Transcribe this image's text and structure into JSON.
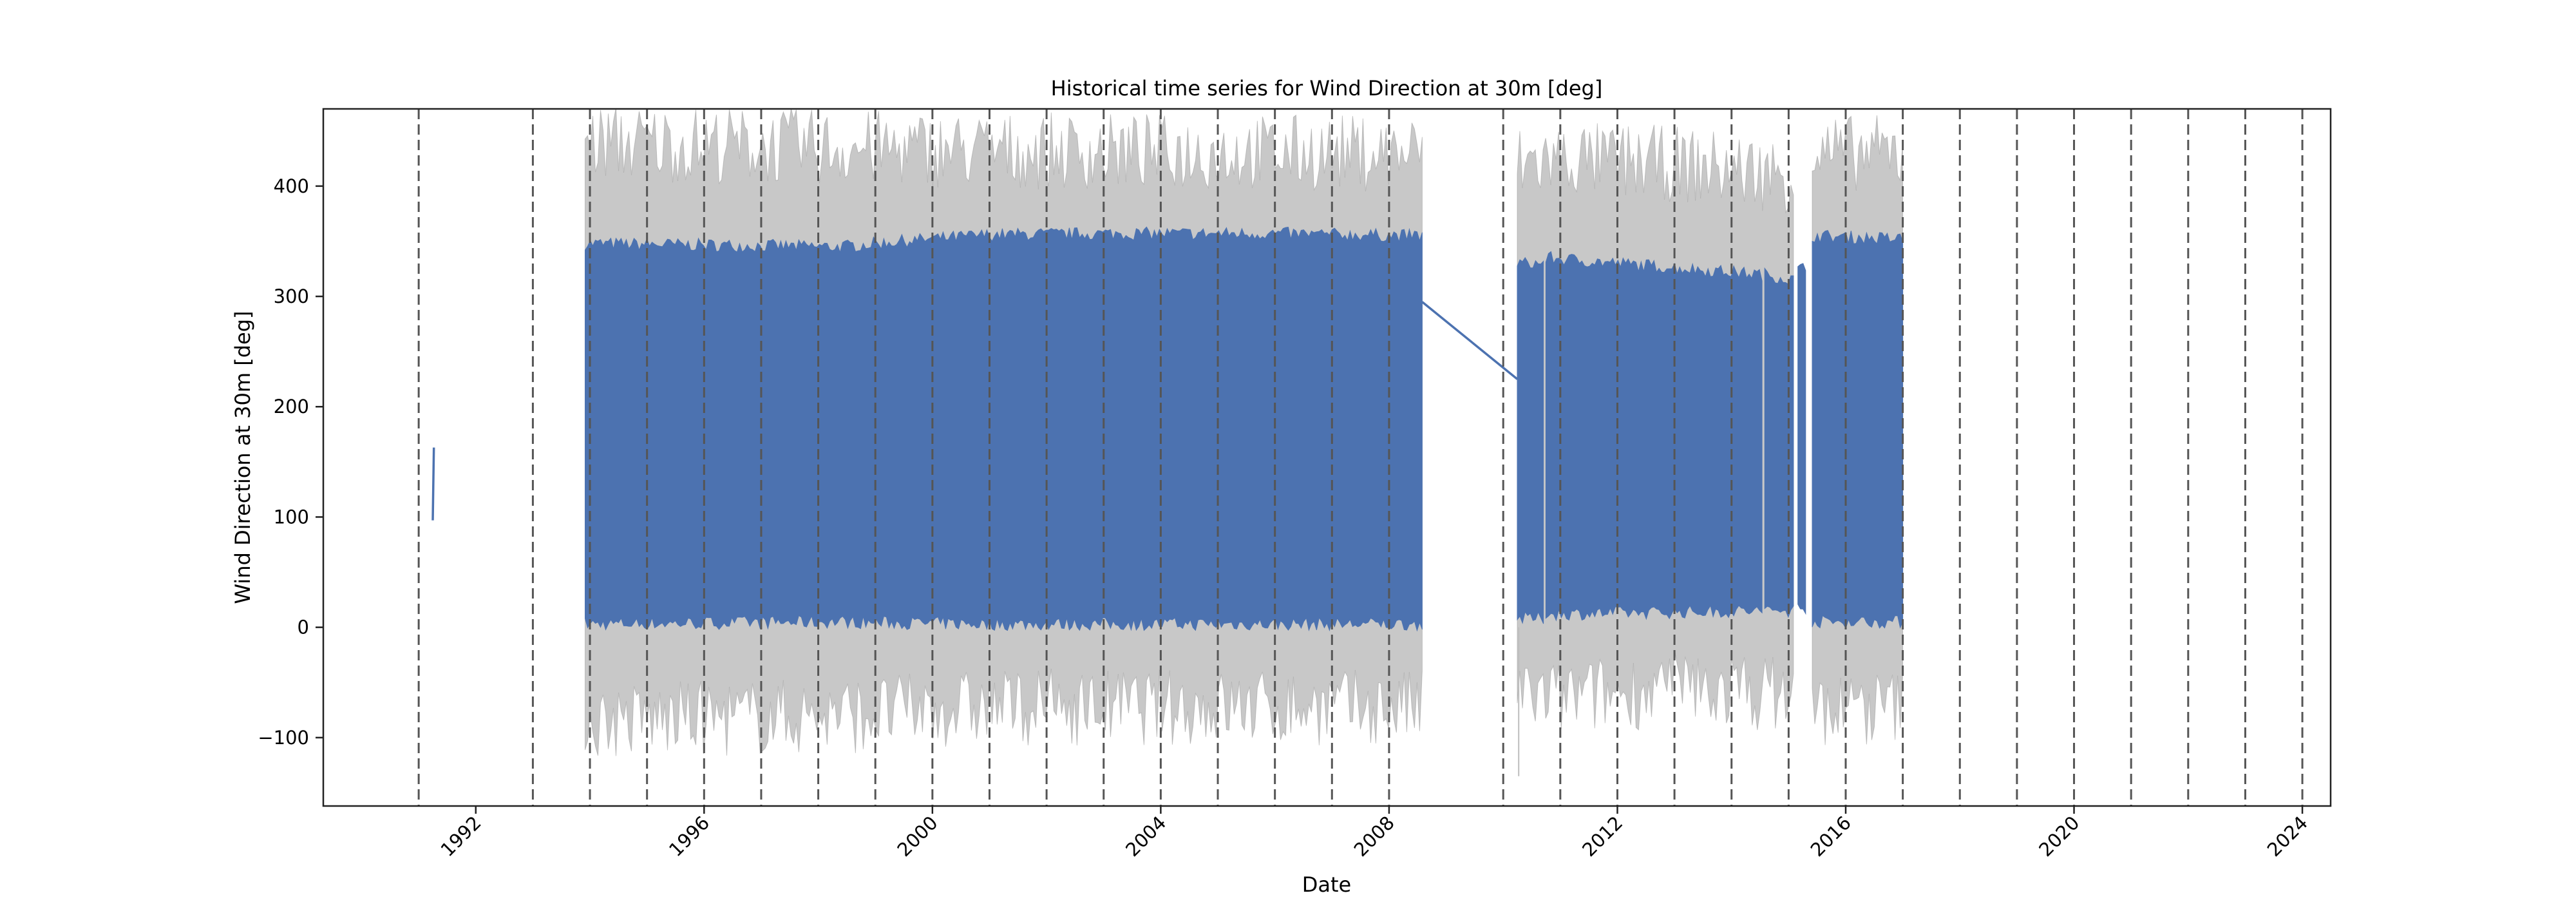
{
  "chart_data": {
    "type": "line",
    "title": "Historical time series for Wind Direction at 30m [deg]",
    "xlabel": "Date",
    "ylabel": "Wind Direction at 30m [deg]",
    "xlim": [
      "1989-05-01",
      "2024-07-01"
    ],
    "ylim": [
      -162,
      470
    ],
    "x_ticks": [
      "1992",
      "1996",
      "2000",
      "2004",
      "2008",
      "2012",
      "2016",
      "2020",
      "2024"
    ],
    "y_ticks": [
      -100,
      0,
      100,
      200,
      300,
      400
    ],
    "grid": false,
    "legend": "none",
    "year_boundaries": [
      "1991",
      "1993",
      "1994",
      "1995",
      "1996",
      "1997",
      "1998",
      "1999",
      "2000",
      "2001",
      "2002",
      "2003",
      "2004",
      "2005",
      "2006",
      "2007",
      "2008",
      "2010",
      "2011",
      "2012",
      "2013",
      "2014",
      "2015",
      "2016",
      "2017",
      "2018",
      "2019",
      "2020",
      "2021",
      "2022",
      "2023",
      "2024"
    ],
    "series": [
      {
        "role": "observations",
        "color": "#4c72b0",
        "segments": [
          {
            "x": [
              "1991-04-01",
              "1991-04-08"
            ],
            "y": [
              97,
              163
            ]
          },
          {
            "x": [
              "1993-12-01",
              "1998-06-01",
              "1999-06-01",
              "2001-01-01",
              "2003-01-01",
              "2006-01-01",
              "2008-08-01"
            ],
            "y_low": [
              3,
              5,
              4,
              3,
              3,
              3,
              3
            ],
            "y_high": [
              348,
              345,
              350,
              356,
              357,
              357,
              355
            ]
          },
          {
            "x": [
              "2008-08-01",
              "2010-04-01"
            ],
            "y": [
              295,
              225
            ]
          },
          {
            "x": [
              "2010-04-01",
              "2010-09-15"
            ],
            "y_low": [
              8,
              8
            ],
            "y_high": [
              330,
              330
            ]
          },
          {
            "x": [
              "2010-10-01",
              "2014-07-15"
            ],
            "y_low": [
              12,
              15
            ],
            "y_high": [
              335,
              320
            ]
          },
          {
            "x": [
              "2014-08-01",
              "2015-02-01"
            ],
            "y_low": [
              15,
              15
            ],
            "y_high": [
              320,
              315
            ]
          },
          {
            "x": [
              "2015-03-01",
              "2015-04-20"
            ],
            "y_low": [
              18,
              18
            ],
            "y_high": [
              325,
              325
            ]
          },
          {
            "x": [
              "2015-06-01",
              "2017-01-01"
            ],
            "y_low": [
              5,
              5
            ],
            "y_high": [
              355,
              352
            ]
          }
        ]
      },
      {
        "role": "uncertainty_envelope",
        "color": "#808080",
        "segments": [
          {
            "x": [
              "1993-12-01",
              "1998-06-01",
              "2001-01-01",
              "2008-08-01"
            ],
            "y_low": [
              -85,
              -80,
              -72,
              -73
            ],
            "y_high": [
              440,
              435,
              432,
              430
            ]
          },
          {
            "x": [
              "2010-04-01",
              "2011-01-01",
              "2013-01-01",
              "2015-02-01"
            ],
            "y_low": [
              -60,
              -65,
              -55,
              -60
            ],
            "y_high": [
              420,
              425,
              420,
              410
            ]
          },
          {
            "x": [
              "2015-06-01",
              "2017-01-01"
            ],
            "y_low": [
              -75,
              -72
            ],
            "y_high": [
              430,
              430
            ]
          }
        ],
        "outliers": [
          {
            "x": "2010-04-10",
            "y": -135
          }
        ]
      }
    ]
  }
}
